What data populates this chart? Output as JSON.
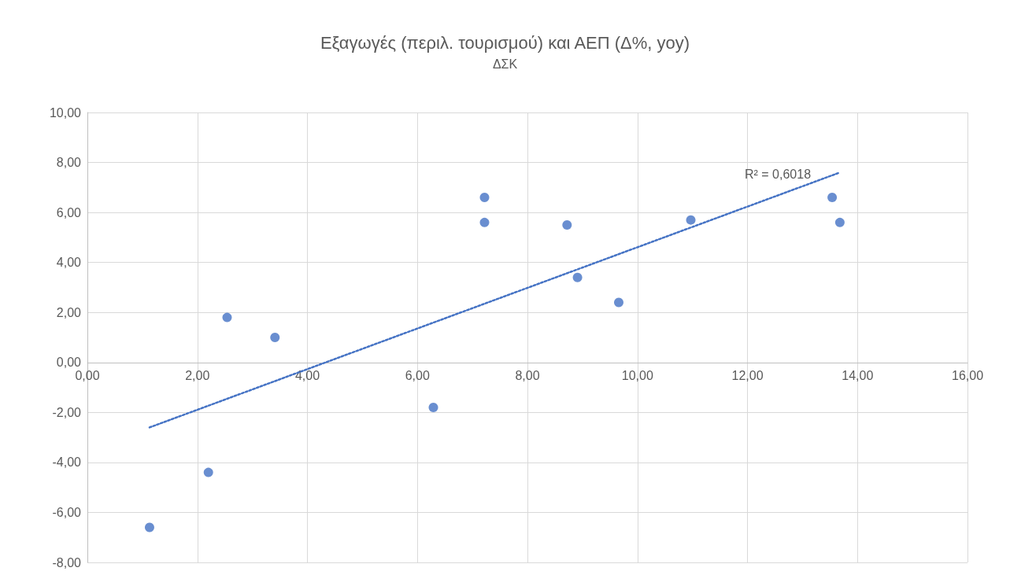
{
  "chart_data": {
    "type": "scatter",
    "title": "Εξαγωγές (περιλ. τουρισμού) και ΑΕΠ (Δ%, yoy)",
    "subtitle": "ΔΣΚ",
    "series": [
      {
        "type": "scatter",
        "color": "#4472c4",
        "marker": "circle",
        "x": [
          1.13,
          2.2,
          2.54,
          3.41,
          6.29,
          7.22,
          7.22,
          8.72,
          8.91,
          9.66,
          10.97,
          13.54,
          13.68
        ],
        "values": [
          -6.6,
          -4.4,
          1.8,
          1.0,
          -1.8,
          6.6,
          5.6,
          5.5,
          3.4,
          2.4,
          5.7,
          6.6,
          5.6
        ]
      },
      {
        "type": "line",
        "color": "#4472c4",
        "marker": "none",
        "line_style": "dotted",
        "x": [
          1.13,
          13.68
        ],
        "values": [
          -2.6,
          7.6
        ]
      }
    ],
    "annotations": [
      "R² = 0,6018"
    ],
    "xlim": [
      0,
      16
    ],
    "xticks": [
      {
        "value": 0,
        "label": "0,00"
      },
      {
        "value": 2,
        "label": "2,00"
      },
      {
        "value": 4,
        "label": "4,00"
      },
      {
        "value": 6,
        "label": "6,00"
      },
      {
        "value": 8,
        "label": "8,00"
      },
      {
        "value": 10,
        "label": "10,00"
      },
      {
        "value": 12,
        "label": "12,00"
      },
      {
        "value": 14,
        "label": "14,00"
      },
      {
        "value": 16,
        "label": "16,00"
      }
    ],
    "ylim": [
      -8,
      10
    ],
    "yticks": [
      {
        "value": -8,
        "label": "-8,00"
      },
      {
        "value": -6,
        "label": "-6,00"
      },
      {
        "value": -4,
        "label": "-4,00"
      },
      {
        "value": -2,
        "label": "-2,00"
      },
      {
        "value": 0,
        "label": "0,00"
      },
      {
        "value": 2,
        "label": "2,00"
      },
      {
        "value": 4,
        "label": "4,00"
      },
      {
        "value": 6,
        "label": "6,00"
      },
      {
        "value": 8,
        "label": "8,00"
      },
      {
        "value": 10,
        "label": "10,00"
      }
    ],
    "grid": true
  }
}
